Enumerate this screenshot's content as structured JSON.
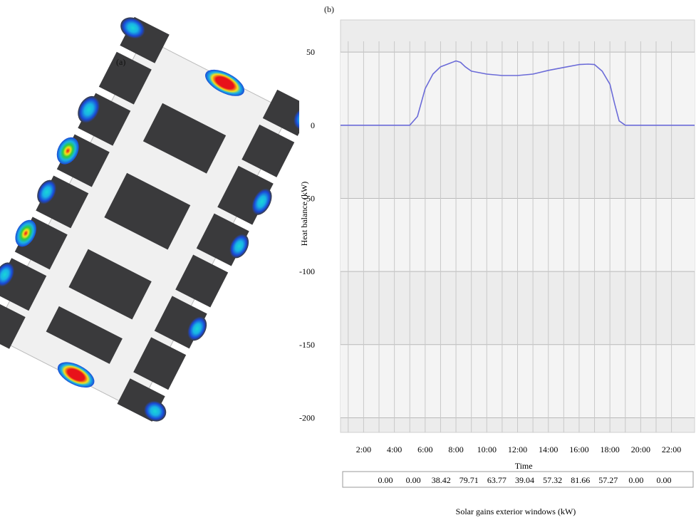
{
  "panel_a": {
    "label": "(a)",
    "colors": {
      "room": "#3a3a3c",
      "heat_high": "#e8121a",
      "heat_mid": "#f5e21a",
      "heat_low": "#19b3e6",
      "heat_base": "#1a49d6"
    }
  },
  "panel_b": {
    "label": "(b)"
  },
  "chart_data": {
    "type": "line",
    "ylabel": "Heat balance (kW)",
    "xlabel": "Time",
    "ylim": [
      -210,
      72
    ],
    "xlim": [
      0.5,
      23.5
    ],
    "yticks": [
      50,
      0,
      -50,
      -100,
      -150,
      -200
    ],
    "ytick_labels": [
      "50",
      "0",
      "-50",
      "-100",
      "-150",
      "-200"
    ],
    "xticks": [
      2,
      4,
      6,
      8,
      10,
      12,
      14,
      16,
      18,
      20,
      22
    ],
    "xtick_labels": [
      "2:00",
      "4:00",
      "6:00",
      "8:00",
      "10:00",
      "12:00",
      "14:00",
      "16:00",
      "18:00",
      "20:00",
      "22:00"
    ],
    "grid": true,
    "series": [
      {
        "color": "#6b6bd8",
        "x": [
          0.5,
          2,
          4,
          5,
          5.5,
          6,
          6.5,
          7,
          7.5,
          8,
          8.3,
          8.6,
          9,
          10,
          11,
          12,
          13,
          14,
          15,
          16,
          16.6,
          17,
          17.5,
          18,
          18.3,
          18.6,
          19,
          20,
          22,
          23.5
        ],
        "y": [
          0,
          0,
          0,
          0,
          6,
          25,
          35,
          40,
          42,
          44,
          43,
          40,
          37,
          35,
          34,
          34,
          35,
          37.5,
          39.5,
          41.5,
          41.8,
          41.5,
          37,
          28,
          15,
          3,
          0,
          0,
          0,
          0
        ]
      }
    ],
    "table": {
      "label": "Solar gains exterior windows (kW)",
      "values": [
        "0.00",
        "0.00",
        "38.42",
        "79.71",
        "63.77",
        "39.04",
        "57.32",
        "81.66",
        "57.27",
        "0.00",
        "0.00"
      ]
    }
  }
}
